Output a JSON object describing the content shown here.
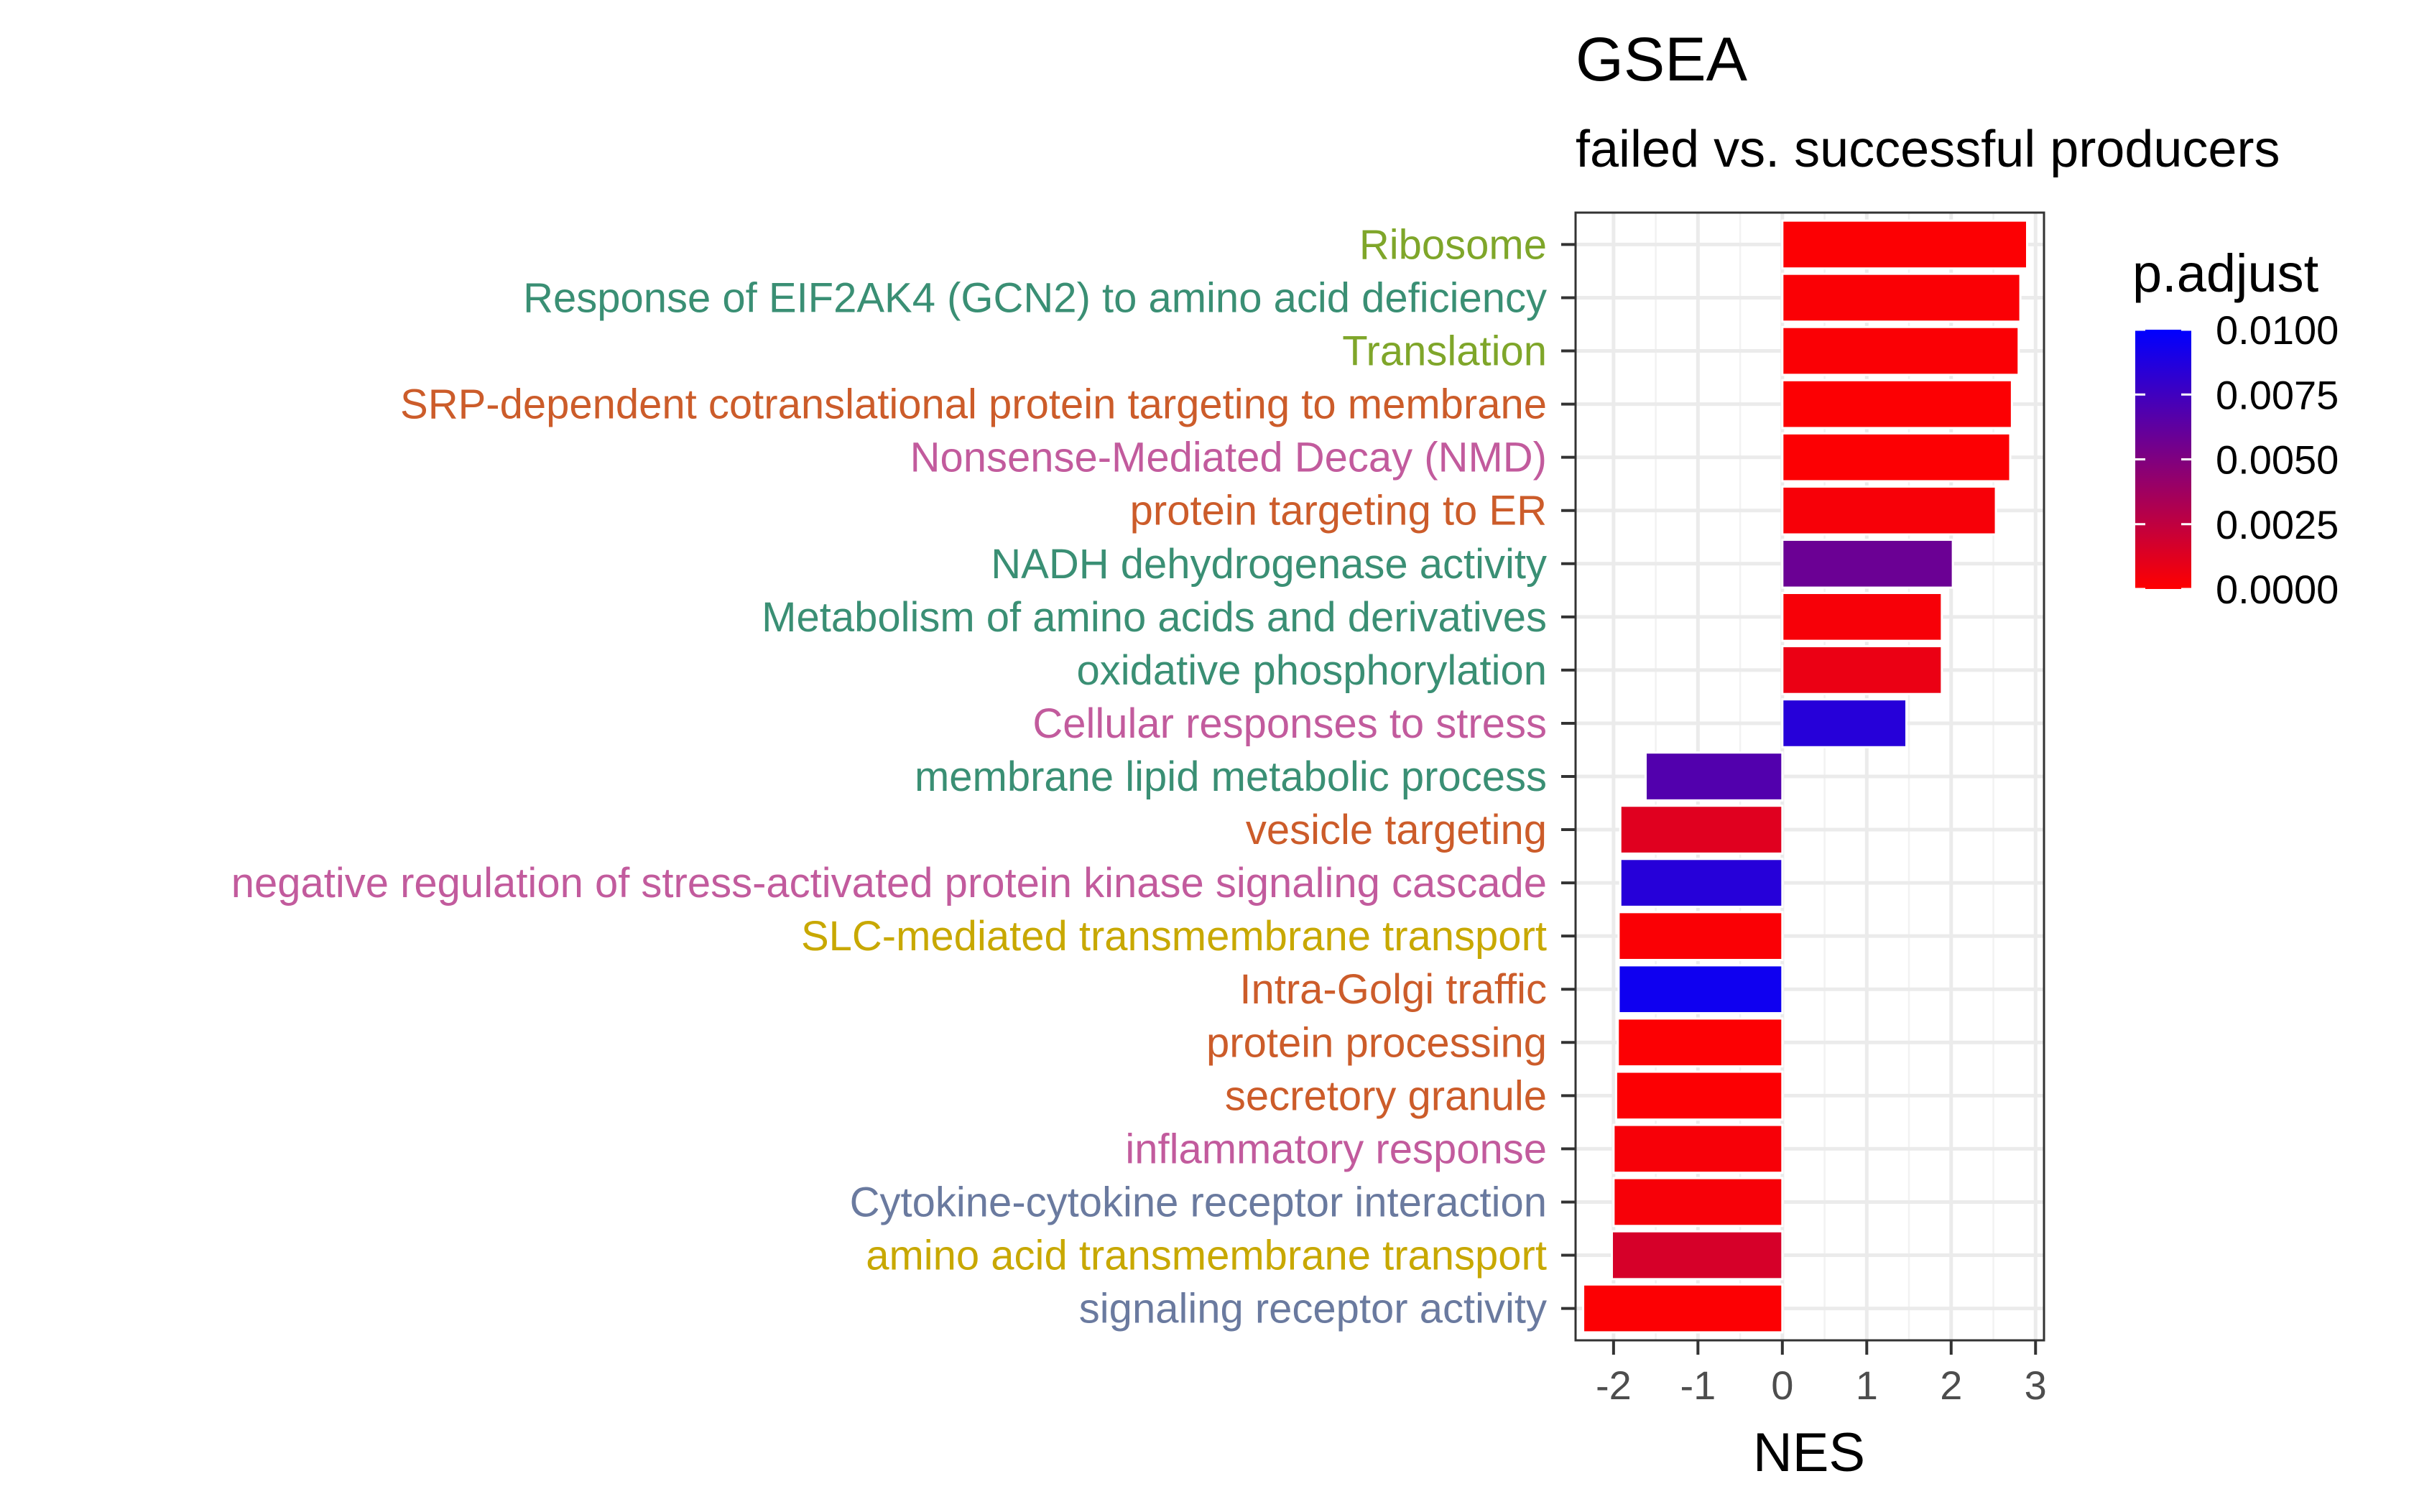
{
  "chart_data": {
    "type": "bar",
    "orientation": "horizontal",
    "title": "GSEA",
    "subtitle": "failed vs. successful producers",
    "xlabel": "NES",
    "ylabel": "",
    "xlim": [
      -2.45,
      3.1
    ],
    "xticks": [
      -2,
      -1,
      0,
      1,
      2,
      3
    ],
    "xtick_labels": [
      "-2",
      "-1",
      "0",
      "1",
      "2",
      "3"
    ],
    "grid": true,
    "legend": {
      "title": "p.adjust",
      "position": "right",
      "type": "colorbar",
      "range": [
        0.0,
        0.01
      ],
      "ticks": [
        0.01,
        0.0075,
        0.005,
        0.0025,
        0.0
      ],
      "tick_labels": [
        "0.0100",
        "0.0075",
        "0.0050",
        "0.0025",
        "0.0000"
      ],
      "low_color": "#ff0000",
      "high_color": "#0000ff"
    },
    "category_colors": {
      "gold": "#c8a800",
      "green": "#7fa62a",
      "teal": "#3a8f74",
      "orange": "#cc5c2a",
      "pink": "#c25b9d",
      "slate": "#6a7a9f"
    },
    "categories": [
      "Ribosome",
      "Response of EIF2AK4 (GCN2) to amino acid deficiency",
      "Translation",
      "SRP-dependent cotranslational protein targeting to membrane",
      "Nonsense-Mediated Decay (NMD)",
      "protein targeting to ER",
      "NADH dehydrogenase activity",
      "Metabolism of amino acids and derivatives",
      "oxidative phosphorylation",
      "Cellular responses to stress",
      "membrane lipid metabolic process",
      "vesicle targeting",
      "negative regulation of stress-activated protein kinase signaling cascade",
      "SLC-mediated transmembrane transport",
      "Intra-Golgi traffic",
      "protein processing",
      "secretory granule",
      "inflammatory response",
      "Cytokine-cytokine receptor interaction",
      "amino acid transmembrane transport",
      "signaling receptor activity"
    ],
    "label_colors": [
      "#7fa62a",
      "#3a8f74",
      "#7fa62a",
      "#cc5c2a",
      "#c25b9d",
      "#cc5c2a",
      "#3a8f74",
      "#3a8f74",
      "#3a8f74",
      "#c25b9d",
      "#3a8f74",
      "#cc5c2a",
      "#c25b9d",
      "#c8a800",
      "#cc5c2a",
      "#cc5c2a",
      "#cc5c2a",
      "#c25b9d",
      "#6a7a9f",
      "#c8a800",
      "#6a7a9f"
    ],
    "values": [
      2.9,
      2.82,
      2.8,
      2.72,
      2.7,
      2.53,
      2.02,
      1.89,
      1.89,
      1.47,
      -1.62,
      -1.92,
      -1.92,
      -1.94,
      -1.94,
      -1.95,
      -1.97,
      -2.0,
      -2.0,
      -2.02,
      -2.36
    ],
    "p_adjust": [
      0.0001,
      0.0002,
      0.0002,
      0.0001,
      0.0001,
      0.0003,
      0.0058,
      0.0003,
      0.0008,
      0.0085,
      0.0068,
      0.0012,
      0.0085,
      0.0002,
      0.0094,
      0.0001,
      0.0001,
      0.0003,
      0.0003,
      0.0016,
      0.0001
    ]
  }
}
